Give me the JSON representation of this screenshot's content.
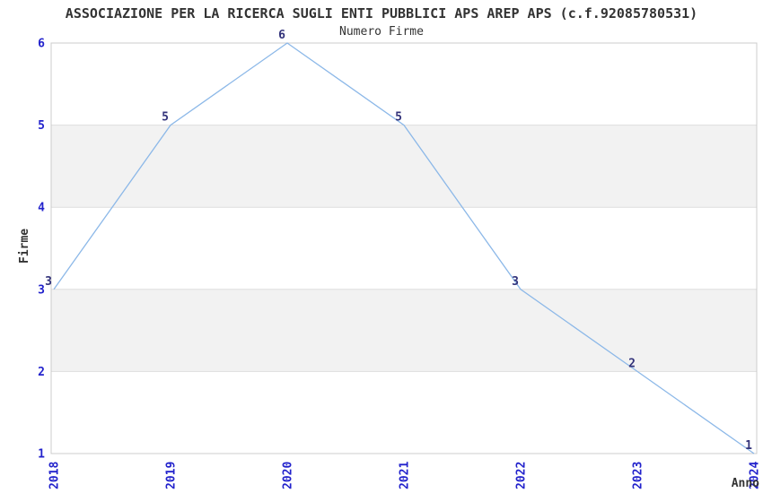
{
  "chart_data": {
    "type": "line",
    "title": "ASSOCIAZIONE PER LA RICERCA SUGLI ENTI PUBBLICI APS AREP APS (c.f.92085780531)",
    "subtitle": "Numero Firme",
    "xlabel": "Anno",
    "ylabel": "Firme",
    "categories": [
      "2018",
      "2019",
      "2020",
      "2021",
      "2022",
      "2023",
      "2024"
    ],
    "values": [
      3,
      5,
      6,
      5,
      3,
      2,
      1
    ],
    "point_labels": [
      "3",
      "5",
      "6",
      "5",
      "3",
      "2",
      "1"
    ],
    "yticks": [
      1,
      2,
      3,
      4,
      5,
      6
    ],
    "ylim": [
      1,
      6
    ],
    "grid": "horizontal-only",
    "legend_position": "none",
    "colors": {
      "line": "#8cb8e8",
      "tick_label": "#2222cc",
      "point_label": "#32327a",
      "band": "#f2f2f2",
      "grid_line": "#dddddd",
      "plot_border": "#cccccc",
      "title_text": "#333333",
      "background": "#ffffff"
    }
  }
}
